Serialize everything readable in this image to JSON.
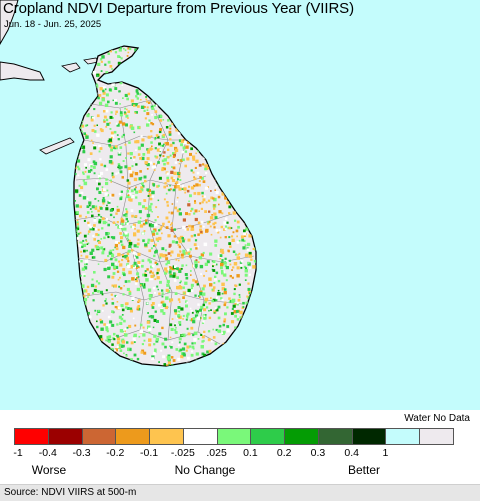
{
  "title": "Cropland NDVI Departure from Previous Year (VIIRS)",
  "subtitle": "Jun. 18 - Jun. 25, 2025",
  "source": "Source: NDVI VIIRS at 500-m",
  "colors": {
    "water": "#c4fcfc",
    "no_data": "#eeeaee",
    "land_default": "#eeeaee",
    "border": "#000000",
    "admin_lines": "#8a8a8a"
  },
  "legend": {
    "water_no_data_label": "Water No Data",
    "swatches": [
      {
        "name": "-1 to -0.4",
        "color": "#ff0000"
      },
      {
        "name": "-0.4 to -0.3",
        "color": "#9b0000"
      },
      {
        "name": "-0.3 to -0.2",
        "color": "#cc6633"
      },
      {
        "name": "-0.2 to -0.1",
        "color": "#ed9a1c"
      },
      {
        "name": "-0.1 to -0.025",
        "color": "#fec44f"
      },
      {
        "name": "-0.025 to 0.025",
        "color": "#ffffff"
      },
      {
        "name": "0.025 to 0.1",
        "color": "#7af87a"
      },
      {
        "name": "0.1 to 0.2",
        "color": "#2ecc4a"
      },
      {
        "name": "0.2 to 0.3",
        "color": "#049c04"
      },
      {
        "name": "0.3 to 0.4",
        "color": "#336633"
      },
      {
        "name": "0.4 to 1",
        "color": "#002800"
      },
      {
        "name": "water",
        "color": "#c4fcfc"
      },
      {
        "name": "no data",
        "color": "#eeeaee"
      }
    ],
    "ticks": [
      "-1",
      "-0.4",
      "-0.3",
      "-0.2",
      "-0.1",
      "-.025",
      ".025",
      "0.1",
      "0.2",
      "0.3",
      "0.4",
      "1"
    ],
    "worse_label": "Worse",
    "no_change_label": "No Change",
    "better_label": "Better"
  }
}
